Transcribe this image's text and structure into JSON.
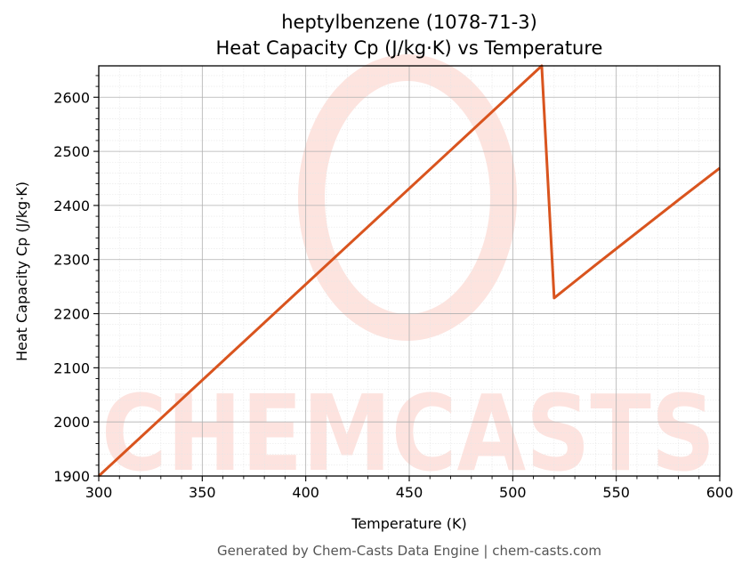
{
  "chart_data": {
    "type": "line",
    "title": "heptylbenzene (1078-71-3)",
    "subtitle": "Heat Capacity Cp (J/kg·K) vs Temperature",
    "xlabel": "Temperature (K)",
    "ylabel": "Heat Capacity Cp (J/kg·K)",
    "xlim": [
      300,
      600
    ],
    "ylim": [
      1900,
      2658
    ],
    "x_ticks": [
      300,
      350,
      400,
      450,
      500,
      550,
      600
    ],
    "y_ticks": [
      1900,
      2000,
      2100,
      2200,
      2300,
      2400,
      2500,
      2600
    ],
    "grid": true,
    "legend": "none",
    "series": [
      {
        "color": "#d9541e",
        "x": [
          300,
          514,
          520,
          540,
          560,
          580,
          600
        ],
        "y": [
          1900,
          2658,
          2229,
          2290,
          2350,
          2410,
          2469
        ]
      }
    ]
  },
  "watermark": {
    "text": "CHEMCASTS",
    "color": "#fde1dc"
  },
  "footer": "Generated by Chem-Casts Data Engine | chem-casts.com"
}
